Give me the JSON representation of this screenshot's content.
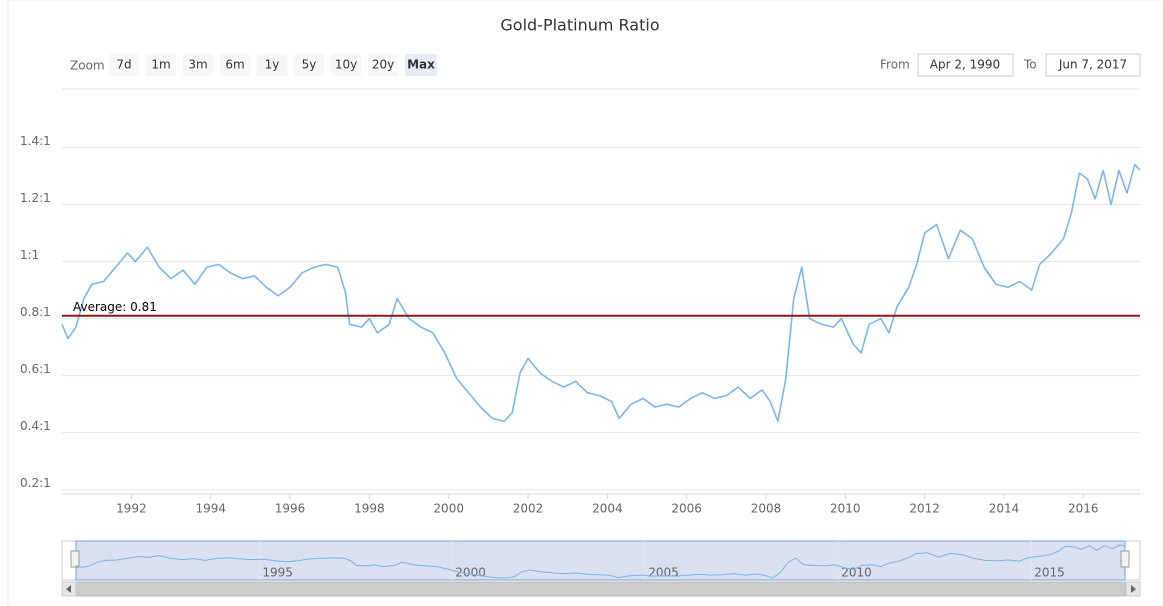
{
  "chart_data": {
    "type": "line",
    "title": "Gold-Platinum Ratio",
    "zoom_label": "Zoom",
    "zoom_buttons": [
      "7d",
      "1m",
      "3m",
      "6m",
      "1y",
      "5y",
      "10y",
      "20y",
      "Max"
    ],
    "selected_button": 8,
    "from_label": "From",
    "from_value": "Apr 2, 1990",
    "to_label": "To",
    "to_value": "Jun 7, 2017",
    "x": [
      1990.25,
      1990.4,
      1990.6,
      1990.8,
      1991.0,
      1991.3,
      1991.6,
      1991.9,
      1992.1,
      1992.4,
      1992.7,
      1993.0,
      1993.3,
      1993.6,
      1993.9,
      1994.2,
      1994.5,
      1994.8,
      1995.1,
      1995.4,
      1995.7,
      1996.0,
      1996.3,
      1996.6,
      1996.9,
      1997.2,
      1997.4,
      1997.5,
      1997.8,
      1998.0,
      1998.2,
      1998.5,
      1998.7,
      1999.0,
      1999.3,
      1999.6,
      1999.9,
      2000.2,
      2000.5,
      2000.8,
      2001.1,
      2001.4,
      2001.6,
      2001.8,
      2002.0,
      2002.3,
      2002.6,
      2002.9,
      2003.2,
      2003.5,
      2003.8,
      2004.1,
      2004.3,
      2004.6,
      2004.9,
      2005.2,
      2005.5,
      2005.8,
      2006.1,
      2006.4,
      2006.7,
      2007.0,
      2007.3,
      2007.6,
      2007.9,
      2008.1,
      2008.3,
      2008.5,
      2008.7,
      2008.9,
      2009.1,
      2009.4,
      2009.7,
      2009.9,
      2010.2,
      2010.4,
      2010.6,
      2010.9,
      2011.1,
      2011.3,
      2011.6,
      2011.8,
      2012.0,
      2012.3,
      2012.6,
      2012.9,
      2013.2,
      2013.5,
      2013.8,
      2014.1,
      2014.4,
      2014.7,
      2014.9,
      2015.2,
      2015.5,
      2015.7,
      2015.9,
      2016.1,
      2016.3,
      2016.5,
      2016.7,
      2016.9,
      2017.1,
      2017.3,
      2017.43
    ],
    "series": [
      {
        "color": "#7cb5ec",
        "values": [
          0.78,
          0.73,
          0.77,
          0.87,
          0.92,
          0.93,
          0.98,
          1.03,
          1.0,
          1.05,
          0.98,
          0.94,
          0.97,
          0.92,
          0.98,
          0.99,
          0.96,
          0.94,
          0.95,
          0.91,
          0.88,
          0.91,
          0.96,
          0.98,
          0.99,
          0.98,
          0.89,
          0.78,
          0.77,
          0.8,
          0.75,
          0.78,
          0.87,
          0.8,
          0.77,
          0.75,
          0.68,
          0.59,
          0.54,
          0.49,
          0.45,
          0.44,
          0.47,
          0.61,
          0.66,
          0.61,
          0.58,
          0.56,
          0.58,
          0.54,
          0.53,
          0.51,
          0.45,
          0.5,
          0.52,
          0.49,
          0.5,
          0.49,
          0.52,
          0.54,
          0.52,
          0.53,
          0.56,
          0.52,
          0.55,
          0.51,
          0.44,
          0.59,
          0.87,
          0.98,
          0.8,
          0.78,
          0.77,
          0.8,
          0.71,
          0.68,
          0.78,
          0.8,
          0.75,
          0.84,
          0.91,
          0.99,
          1.1,
          1.13,
          1.01,
          1.11,
          1.08,
          0.98,
          0.92,
          0.91,
          0.93,
          0.9,
          0.99,
          1.03,
          1.08,
          1.17,
          1.31,
          1.29,
          1.22,
          1.32,
          1.2,
          1.32,
          1.24,
          1.34,
          1.32
        ]
      }
    ],
    "xlim": [
      1990.25,
      2017.43
    ],
    "xticks": [
      1992,
      1994,
      1996,
      1998,
      2000,
      2002,
      2004,
      2006,
      2008,
      2010,
      2012,
      2014,
      2016
    ],
    "ylim": [
      0.185,
      1.605
    ],
    "yticks": [
      {
        "value": 0.2,
        "label": "0.2:1"
      },
      {
        "value": 0.4,
        "label": "0.4:1"
      },
      {
        "value": 0.6,
        "label": "0.6:1"
      },
      {
        "value": 0.8,
        "label": "0.8:1"
      },
      {
        "value": 1,
        "label": "1:1"
      },
      {
        "value": 1.2,
        "label": "1.2:1"
      },
      {
        "value": 1.4,
        "label": "1.4:1"
      }
    ],
    "grid": true,
    "plot_lines": [
      {
        "value": 0.81,
        "label": "Average: 0.81",
        "color": "#8b1a1a"
      }
    ],
    "navigator_xticks": [
      1995,
      2000,
      2005,
      2010,
      2015
    ]
  }
}
